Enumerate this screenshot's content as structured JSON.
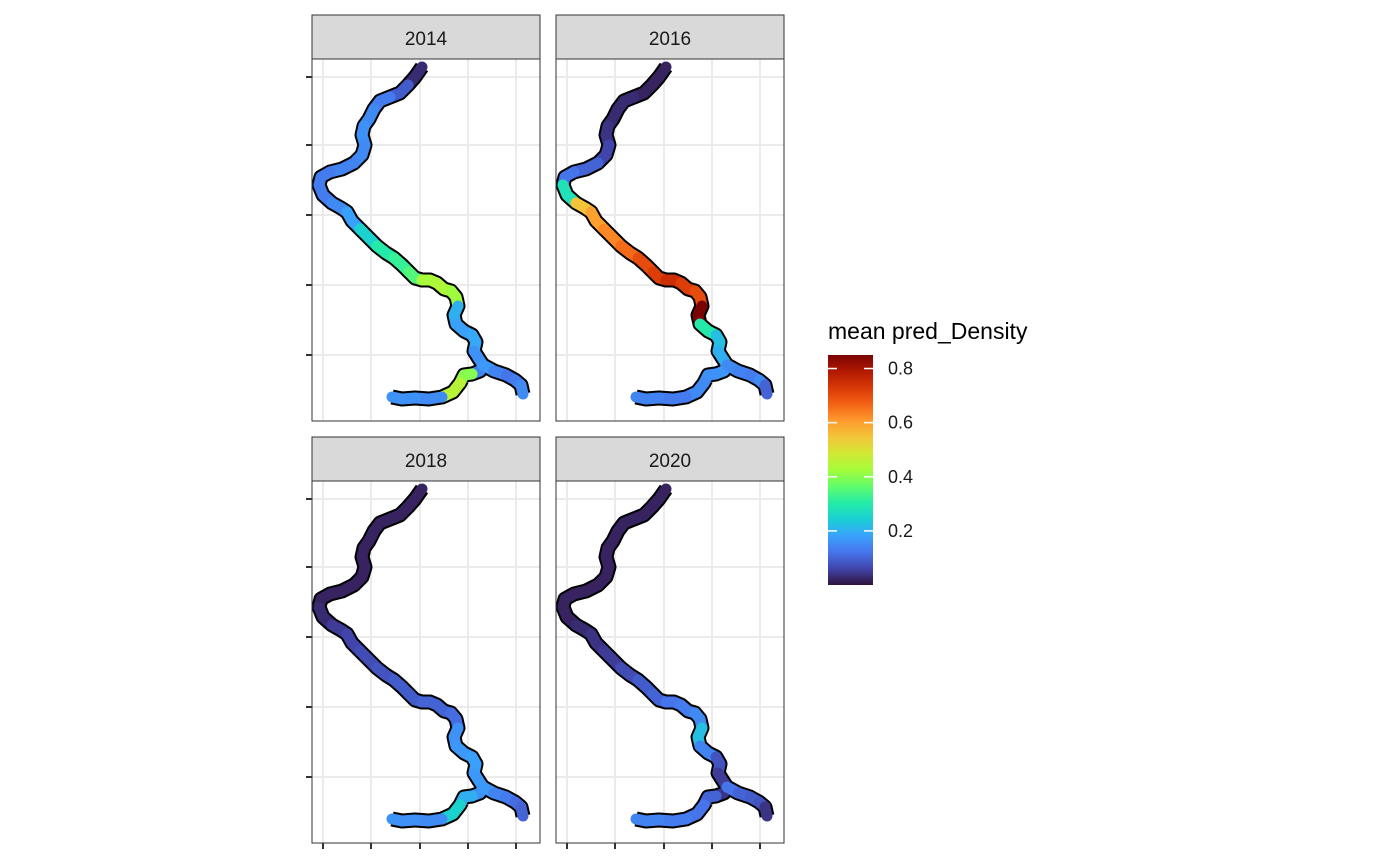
{
  "map": {
    "panels": [
      {
        "year": "2014",
        "segment_density": [
          0.03,
          0.09,
          0.13,
          0.15,
          0.16,
          0.15,
          0.14,
          0.13,
          0.13,
          0.15,
          0.18,
          0.25,
          0.3,
          0.32,
          0.35,
          0.43,
          0.44,
          0.42,
          0.2,
          0.18,
          0.19,
          0.16,
          0.14,
          0.4,
          0.45,
          0.15,
          0.16,
          0.17,
          0.14,
          0.12,
          0.13,
          0.15,
          0.09,
          0.03,
          0.02,
          0.02
        ]
      },
      {
        "year": "2016",
        "segment_density": [
          0.02,
          0.02,
          0.03,
          0.03,
          0.04,
          0.06,
          0.1,
          0.12,
          0.28,
          0.55,
          0.6,
          0.63,
          0.66,
          0.7,
          0.72,
          0.75,
          0.72,
          0.7,
          0.85,
          0.3,
          0.22,
          0.2,
          0.17,
          0.16,
          0.15,
          0.13,
          0.14,
          0.15,
          0.14,
          0.13,
          0.15,
          0.1,
          0.02,
          0.02,
          0.02,
          0.02
        ]
      },
      {
        "year": "2018",
        "segment_density": [
          0.02,
          0.02,
          0.02,
          0.02,
          0.02,
          0.02,
          0.02,
          0.02,
          0.03,
          0.05,
          0.06,
          0.07,
          0.08,
          0.09,
          0.09,
          0.1,
          0.1,
          0.11,
          0.16,
          0.17,
          0.18,
          0.17,
          0.16,
          0.2,
          0.25,
          0.15,
          0.16,
          0.17,
          0.14,
          0.13,
          0.11,
          0.1,
          0.06,
          0.03,
          0.02,
          0.02
        ]
      },
      {
        "year": "2020",
        "segment_density": [
          0.02,
          0.02,
          0.02,
          0.02,
          0.02,
          0.02,
          0.02,
          0.02,
          0.02,
          0.03,
          0.04,
          0.05,
          0.07,
          0.09,
          0.1,
          0.12,
          0.13,
          0.15,
          0.22,
          0.14,
          0.08,
          0.05,
          0.04,
          0.1,
          0.12,
          0.13,
          0.14,
          0.12,
          0.1,
          0.09,
          0.08,
          0.04,
          0.03,
          0.02,
          0.02,
          0.02
        ]
      }
    ],
    "legend": {
      "title": "mean pred_Density",
      "min": 0.0,
      "max": 0.85,
      "ticks": [
        {
          "value": 0.2,
          "label": "0.2"
        },
        {
          "value": 0.4,
          "label": "0.4"
        },
        {
          "value": 0.6,
          "label": "0.6"
        },
        {
          "value": 0.8,
          "label": "0.8"
        }
      ],
      "palette": [
        "#30123b",
        "#4145ab",
        "#4675ed",
        "#39a2fc",
        "#1bcfd4",
        "#24eca6",
        "#61fc6c",
        "#a4fc3b",
        "#d1e834",
        "#f3c63a",
        "#fe9b2d",
        "#f36315",
        "#d93806",
        "#b11901",
        "#7a0403"
      ]
    }
  }
}
